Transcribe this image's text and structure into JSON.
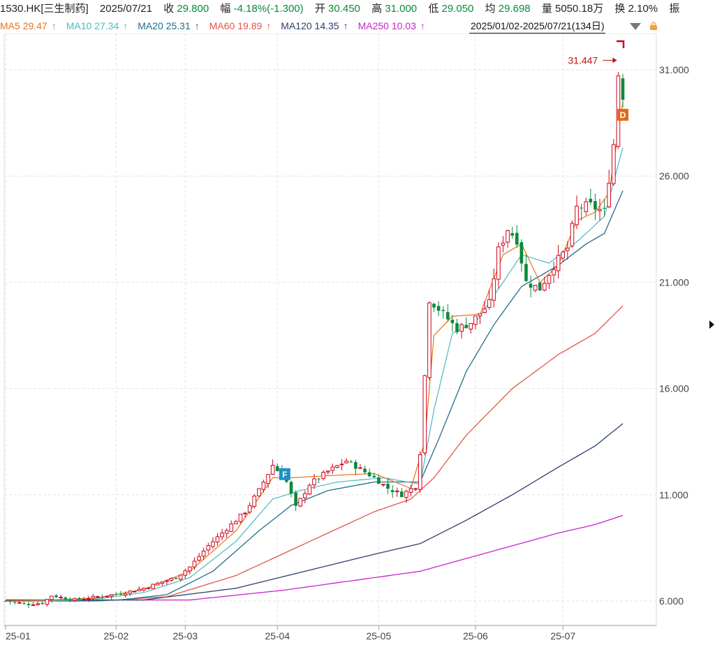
{
  "header": {
    "symbol": "1530.HK[三生制药]",
    "date": "2025/07/21",
    "close_label": "收",
    "close_value": "29.800",
    "change_label": "幅",
    "change_value": "-4.18%(-1.300)",
    "open_label": "开",
    "open_value": "30.450",
    "high_label": "高",
    "high_value": "31.000",
    "low_label": "低",
    "low_value": "29.050",
    "avg_label": "均",
    "avg_value": "29.698",
    "volume_label": "量",
    "volume_value": "5050.18万",
    "turnover_label": "换",
    "turnover_value": "2.10%",
    "amplitude_label": "振"
  },
  "ma_legend": [
    {
      "name": "MA5",
      "value": "29.47",
      "color": "#e8731b"
    },
    {
      "name": "MA10",
      "value": "27.34",
      "color": "#4fb8c0"
    },
    {
      "name": "MA20",
      "value": "25.31",
      "color": "#1f6f8b"
    },
    {
      "name": "MA60",
      "value": "19.89",
      "color": "#e2564c"
    },
    {
      "name": "MA120",
      "value": "14.35",
      "color": "#2c3e6b"
    },
    {
      "name": "MA250",
      "value": "10.03",
      "color": "#cc22cc"
    }
  ],
  "ma_arrow": "↑",
  "range_label": "2025/01/02-2025/07/21(134日)",
  "chart_data": {
    "type": "candlestick",
    "x_labels": [
      "25-01",
      "25-02",
      "25-03",
      "25-04",
      "25-05",
      "25-06",
      "25-07"
    ],
    "x_label_days": [
      0,
      24,
      39,
      59,
      81,
      102,
      121
    ],
    "y_ticks": [
      "6.000",
      "11.000",
      "16.000",
      "21.000",
      "26.000",
      "31.000"
    ],
    "ylim": [
      5.5,
      32.5
    ],
    "n_days": 134,
    "high_annotation": "31.447",
    "markers": [
      {
        "label": "F",
        "color": "#1e8fc6"
      },
      {
        "label": "D",
        "color": "#e06b14"
      }
    ],
    "up_color": "#d0021b",
    "down_color": "#0b8a3a",
    "close_anchors": [
      [
        0,
        6.0
      ],
      [
        5,
        5.85
      ],
      [
        8,
        5.9
      ],
      [
        10,
        6.25
      ],
      [
        15,
        6.05
      ],
      [
        20,
        6.2
      ],
      [
        25,
        6.35
      ],
      [
        30,
        6.6
      ],
      [
        34,
        6.9
      ],
      [
        37,
        7.1
      ],
      [
        40,
        7.6
      ],
      [
        44,
        8.6
      ],
      [
        48,
        9.4
      ],
      [
        52,
        10.2
      ],
      [
        55,
        11.2
      ],
      [
        58,
        12.4
      ],
      [
        61,
        11.6
      ],
      [
        63,
        10.4
      ],
      [
        66,
        11.5
      ],
      [
        70,
        12.1
      ],
      [
        74,
        12.6
      ],
      [
        77,
        12.2
      ],
      [
        80,
        11.8
      ],
      [
        83,
        11.3
      ],
      [
        86,
        11.0
      ],
      [
        89,
        11.4
      ],
      [
        90,
        13.0
      ],
      [
        92,
        20.2
      ],
      [
        95,
        19.5
      ],
      [
        98,
        18.8
      ],
      [
        101,
        19.1
      ],
      [
        105,
        20.0
      ],
      [
        107,
        22.5
      ],
      [
        109,
        23.5
      ],
      [
        111,
        23.0
      ],
      [
        113,
        21.0
      ],
      [
        116,
        20.7
      ],
      [
        119,
        21.8
      ],
      [
        122,
        22.6
      ],
      [
        124,
        24.5
      ],
      [
        127,
        24.6
      ],
      [
        130,
        24.3
      ],
      [
        132,
        27.5
      ],
      [
        133,
        30.8
      ],
      [
        134,
        29.8
      ]
    ],
    "ma_anchors": {
      "MA5": [
        [
          0,
          6.0
        ],
        [
          10,
          6.05
        ],
        [
          20,
          6.15
        ],
        [
          30,
          6.55
        ],
        [
          40,
          7.4
        ],
        [
          50,
          9.3
        ],
        [
          58,
          11.8
        ],
        [
          62,
          11.8
        ],
        [
          70,
          11.9
        ],
        [
          80,
          12.0
        ],
        [
          88,
          11.3
        ],
        [
          91,
          13.5
        ],
        [
          93,
          18.5
        ],
        [
          97,
          19.4
        ],
        [
          103,
          19.5
        ],
        [
          108,
          22.3
        ],
        [
          112,
          22.8
        ],
        [
          116,
          21.0
        ],
        [
          120,
          21.8
        ],
        [
          124,
          23.9
        ],
        [
          128,
          24.3
        ],
        [
          131,
          25.2
        ],
        [
          134,
          29.47
        ]
      ],
      "MA10": [
        [
          0,
          6.0
        ],
        [
          10,
          6.0
        ],
        [
          20,
          6.1
        ],
        [
          30,
          6.4
        ],
        [
          40,
          7.1
        ],
        [
          50,
          8.8
        ],
        [
          58,
          10.8
        ],
        [
          64,
          11.2
        ],
        [
          72,
          11.6
        ],
        [
          82,
          11.8
        ],
        [
          90,
          11.5
        ],
        [
          93,
          15.0
        ],
        [
          97,
          18.6
        ],
        [
          102,
          19.1
        ],
        [
          108,
          21.0
        ],
        [
          112,
          22.3
        ],
        [
          118,
          21.9
        ],
        [
          124,
          22.9
        ],
        [
          130,
          24.1
        ],
        [
          134,
          27.34
        ]
      ],
      "MA20": [
        [
          0,
          6.0
        ],
        [
          15,
          6.0
        ],
        [
          25,
          6.05
        ],
        [
          35,
          6.3
        ],
        [
          45,
          7.4
        ],
        [
          55,
          9.3
        ],
        [
          62,
          10.5
        ],
        [
          70,
          11.2
        ],
        [
          80,
          11.6
        ],
        [
          90,
          11.6
        ],
        [
          94,
          13.6
        ],
        [
          100,
          16.8
        ],
        [
          106,
          19.0
        ],
        [
          112,
          20.8
        ],
        [
          120,
          21.8
        ],
        [
          126,
          22.8
        ],
        [
          130,
          23.3
        ],
        [
          134,
          25.31
        ]
      ],
      "MA60": [
        [
          0,
          6.0
        ],
        [
          20,
          6.0
        ],
        [
          35,
          6.2
        ],
        [
          50,
          7.2
        ],
        [
          60,
          8.2
        ],
        [
          70,
          9.2
        ],
        [
          80,
          10.2
        ],
        [
          88,
          10.8
        ],
        [
          93,
          11.8
        ],
        [
          100,
          13.8
        ],
        [
          110,
          16.0
        ],
        [
          120,
          17.6
        ],
        [
          128,
          18.6
        ],
        [
          134,
          19.89
        ]
      ],
      "MA120": [
        [
          0,
          6.05
        ],
        [
          30,
          6.05
        ],
        [
          50,
          6.6
        ],
        [
          65,
          7.4
        ],
        [
          80,
          8.2
        ],
        [
          90,
          8.7
        ],
        [
          100,
          9.8
        ],
        [
          110,
          11.0
        ],
        [
          120,
          12.3
        ],
        [
          128,
          13.3
        ],
        [
          134,
          14.35
        ]
      ],
      "MA250": [
        [
          0,
          6.05
        ],
        [
          40,
          6.05
        ],
        [
          60,
          6.5
        ],
        [
          80,
          7.1
        ],
        [
          90,
          7.4
        ],
        [
          100,
          8.0
        ],
        [
          110,
          8.6
        ],
        [
          120,
          9.2
        ],
        [
          128,
          9.6
        ],
        [
          134,
          10.03
        ]
      ]
    }
  }
}
